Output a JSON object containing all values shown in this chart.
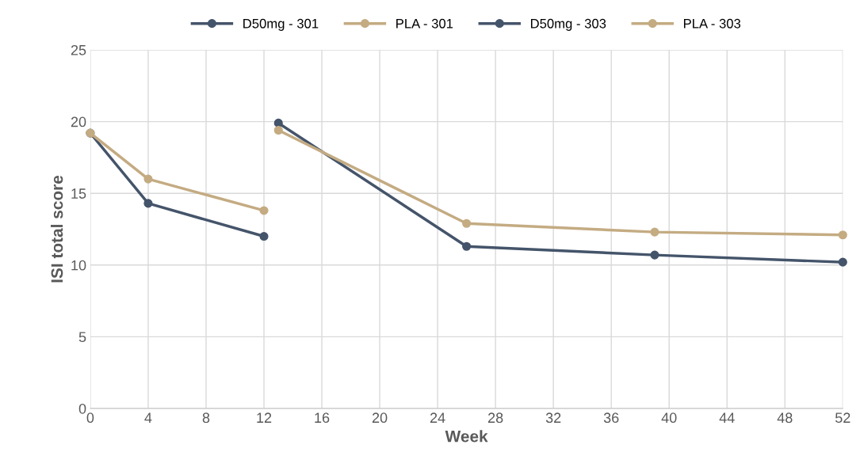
{
  "chart_data": {
    "type": "line",
    "xlabel": "Week",
    "ylabel": "ISI total score",
    "xlim": [
      0,
      52
    ],
    "xticks": [
      0,
      4,
      8,
      12,
      16,
      20,
      24,
      28,
      32,
      36,
      40,
      44,
      48,
      52
    ],
    "ylim": [
      0,
      25
    ],
    "yticks": [
      0,
      5,
      10,
      15,
      20,
      25
    ],
    "grid": true,
    "legend": "top",
    "marker": "circle",
    "line_style": "solid",
    "series": [
      {
        "name": "D50mg - 301",
        "color": "#44546a",
        "x": [
          0,
          4,
          12
        ],
        "values": [
          19.2,
          14.3,
          12.0
        ]
      },
      {
        "name": "PLA - 301",
        "color": "#c4ab82",
        "x": [
          0,
          4,
          12
        ],
        "values": [
          19.2,
          16.0,
          13.8
        ]
      },
      {
        "name": "D50mg - 303",
        "color": "#44546a",
        "x": [
          13,
          26,
          39,
          52
        ],
        "values": [
          19.9,
          11.3,
          10.7,
          10.2
        ]
      },
      {
        "name": "PLA - 303",
        "color": "#c4ab82",
        "x": [
          13,
          26,
          39,
          52
        ],
        "values": [
          19.4,
          12.9,
          12.3,
          12.1
        ]
      }
    ]
  }
}
